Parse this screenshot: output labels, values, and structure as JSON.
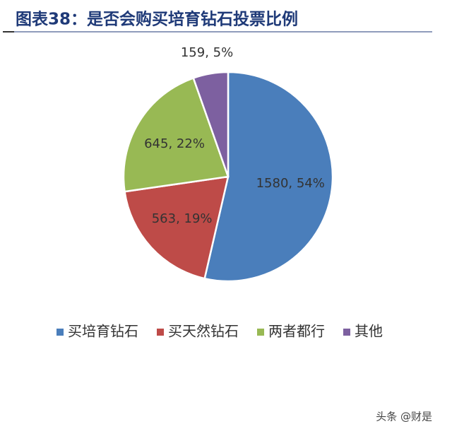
{
  "chart_data": {
    "type": "pie",
    "title": "图表38：是否会购买培育钻石投票比例",
    "categories": [
      "买培育钻石",
      "买天然钻石",
      "两者都行",
      "其他"
    ],
    "values": [
      1580,
      563,
      645,
      159
    ],
    "value_labels": [
      "1580, 54%",
      "563, 19%",
      "645, 22%",
      "159, 5%"
    ],
    "colors": [
      "#4a7ebb",
      "#be4b48",
      "#98b954",
      "#7d60a0"
    ],
    "legend": "bottom"
  },
  "watermark": "头条 @财是"
}
